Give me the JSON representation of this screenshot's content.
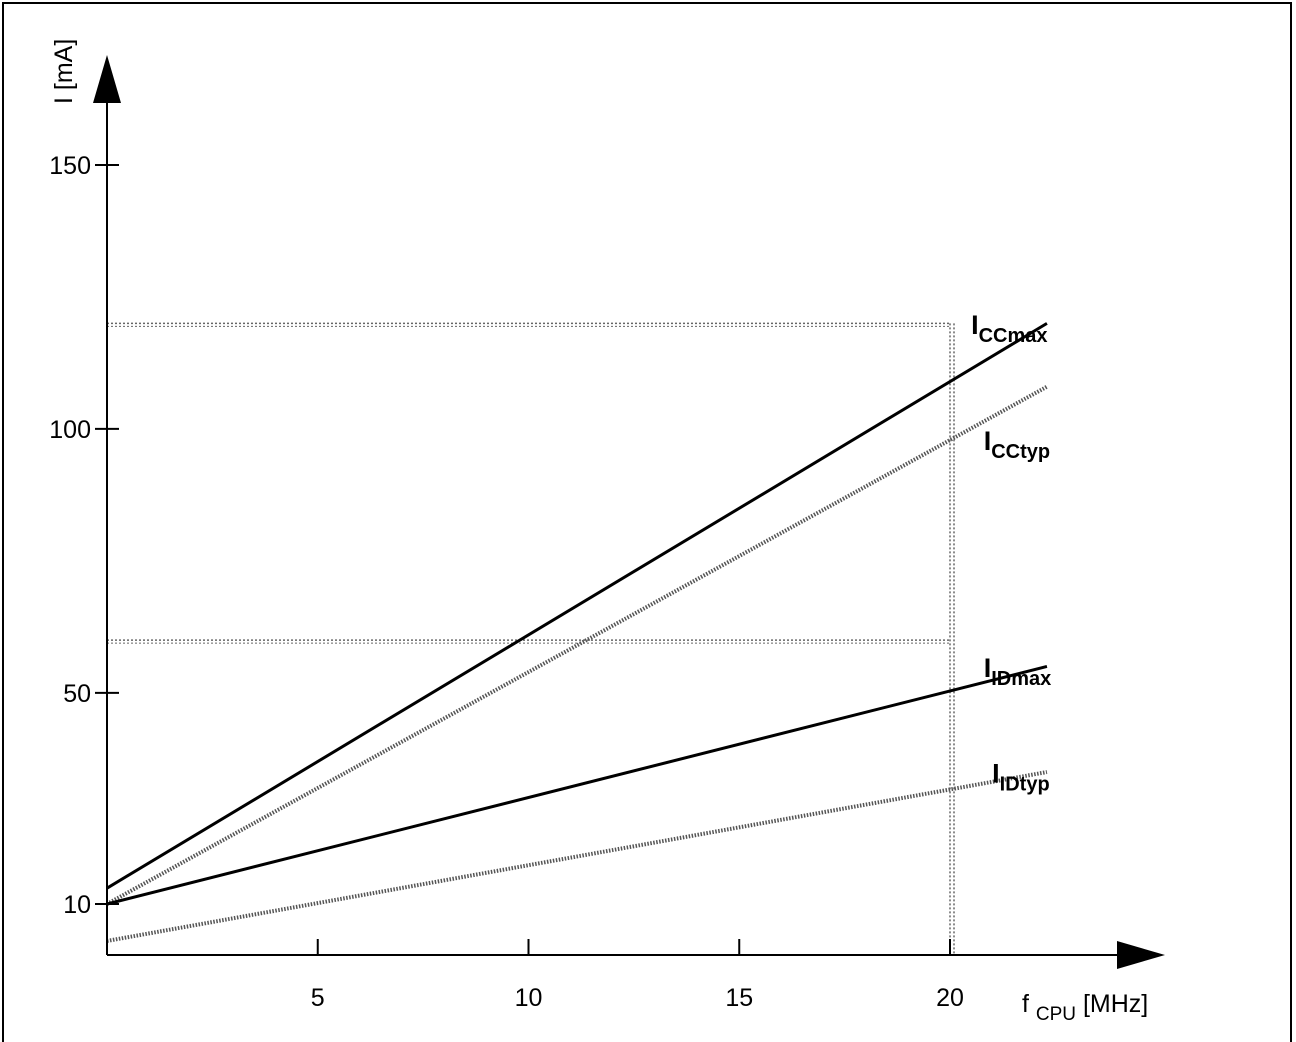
{
  "chart_data": {
    "type": "line",
    "x_axis": {
      "label_main": "f",
      "label_sub": "CPU",
      "label_unit": " [MHz]",
      "ticks": [
        5,
        10,
        15,
        20
      ],
      "range": [
        0,
        25
      ]
    },
    "y_axis": {
      "label": "I [mA]",
      "ticks": [
        10,
        50,
        100,
        150
      ],
      "range": [
        0,
        160
      ]
    },
    "grid": false,
    "reference_lines": {
      "x": 20,
      "y": [
        120,
        60
      ]
    },
    "series": [
      {
        "name_main": "I",
        "name_sub": "CCmax",
        "style": "solid",
        "x": [
          0,
          22.3
        ],
        "y": [
          13,
          120
        ],
        "label_anchor": [
          20.5,
          118
        ]
      },
      {
        "name_main": "I",
        "name_sub": "CCtyp",
        "style": "dotted",
        "x": [
          0,
          22.3
        ],
        "y": [
          10,
          108
        ],
        "label_anchor": [
          20.8,
          96
        ]
      },
      {
        "name_main": "I",
        "name_sub": "IDmax",
        "style": "solid",
        "x": [
          0,
          22.3
        ],
        "y": [
          10,
          55
        ],
        "label_anchor": [
          20.8,
          53
        ]
      },
      {
        "name_main": "I",
        "name_sub": "IDtyp",
        "style": "dotted",
        "x": [
          0,
          22.3
        ],
        "y": [
          3,
          35
        ],
        "label_anchor": [
          21.0,
          33
        ]
      }
    ]
  }
}
